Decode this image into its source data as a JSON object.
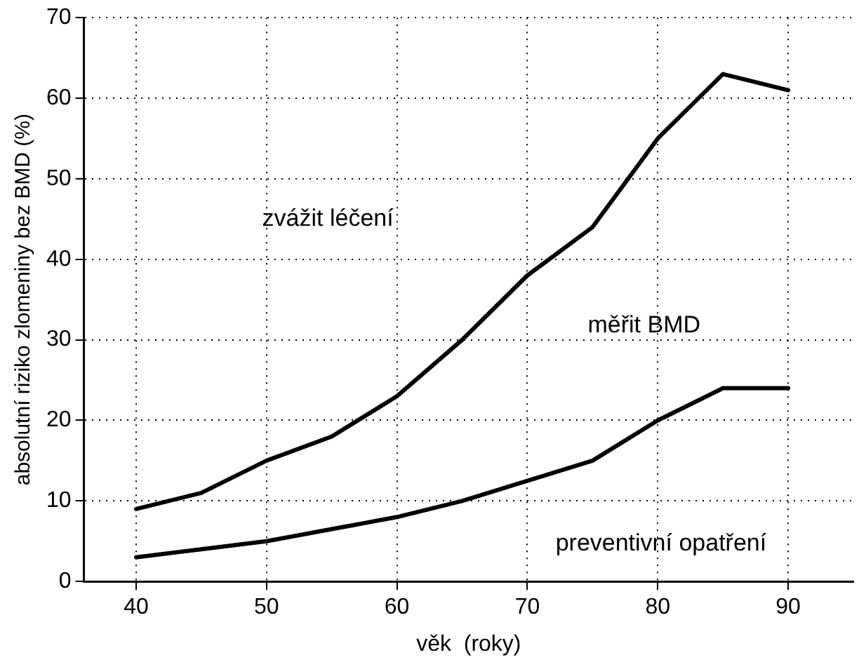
{
  "chart_data": {
    "type": "line",
    "xlabel": "věk  (roky)",
    "ylabel": "absolutní riziko zlomeniny bez BMD (%)",
    "x": [
      40,
      45,
      50,
      55,
      60,
      65,
      70,
      75,
      80,
      85,
      90
    ],
    "series": [
      {
        "color": "#000000",
        "values": [
          9,
          11,
          15,
          18,
          23,
          30,
          38,
          44,
          55,
          63,
          61
        ]
      },
      {
        "color": "#000000",
        "values": [
          3,
          4,
          5,
          6.5,
          8,
          10,
          12.5,
          15,
          20,
          24,
          24
        ]
      }
    ],
    "xlim": [
      36,
      95
    ],
    "xticks": [
      40,
      50,
      60,
      70,
      80,
      90
    ],
    "ylim": [
      0,
      70
    ],
    "yticks": [
      0,
      10,
      20,
      30,
      40,
      50,
      60,
      70
    ],
    "grid": true,
    "legend": false,
    "marker": "none",
    "line_style": "solid",
    "annotations": [
      "zvážit léčení",
      "měřit BMD",
      "preventivní opatření"
    ]
  }
}
